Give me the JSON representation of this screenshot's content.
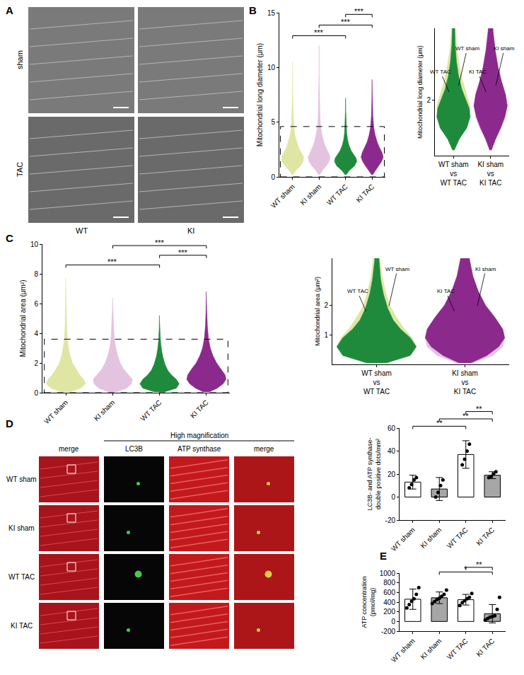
{
  "chart_data": [
    {
      "type": "violin",
      "title": "B",
      "categories": [
        "WT sham",
        "KI sham",
        "WT TAC",
        "KI TAC"
      ],
      "ylabel": [
        "Mitochondrial long diameter (μm)"
      ],
      "ylim": [
        0,
        15
      ],
      "yticks": [
        0,
        5,
        10,
        15
      ],
      "series": [
        {
          "name": "WT sham",
          "color": "#dfe6a3",
          "profile": {
            "y": [
              0.2,
              0.6,
              1.0,
              1.4,
              1.8,
              2.2,
              2.7,
              3.2,
              3.8,
              4.5,
              5.5,
              7,
              9,
              10.5
            ],
            "density": [
              0.05,
              0.3,
              0.7,
              0.95,
              1.0,
              0.8,
              0.55,
              0.38,
              0.22,
              0.12,
              0.06,
              0.03,
              0.015,
              0.01
            ]
          }
        },
        {
          "name": "KI sham",
          "color": "#e3c3e0",
          "profile": {
            "y": [
              0.2,
              0.6,
              1.0,
              1.4,
              1.8,
              2.2,
              2.7,
              3.2,
              3.8,
              4.5,
              5.5,
              7,
              9.5,
              12
            ],
            "density": [
              0.05,
              0.3,
              0.65,
              0.9,
              1.0,
              0.85,
              0.6,
              0.42,
              0.27,
              0.15,
              0.08,
              0.04,
              0.015,
              0.01
            ]
          }
        },
        {
          "name": "WT TAC",
          "color": "#1f8a3c",
          "profile": {
            "y": [
              0.2,
              0.6,
              1.0,
              1.4,
              1.7,
              2.0,
              2.4,
              2.9,
              3.4,
              4.0,
              5,
              6,
              7.2
            ],
            "density": [
              0.05,
              0.35,
              0.8,
              1.0,
              0.95,
              0.75,
              0.5,
              0.3,
              0.18,
              0.1,
              0.05,
              0.02,
              0.01
            ]
          }
        },
        {
          "name": "KI TAC",
          "color": "#8b2a8c",
          "profile": {
            "y": [
              0.2,
              0.6,
              1.0,
              1.4,
              1.8,
              2.2,
              2.7,
              3.2,
              3.8,
              4.5,
              5.5,
              7,
              8.9
            ],
            "density": [
              0.05,
              0.3,
              0.6,
              0.85,
              1.0,
              0.9,
              0.65,
              0.45,
              0.28,
              0.15,
              0.07,
              0.03,
              0.01
            ]
          }
        }
      ],
      "comparisons": [
        {
          "groups": [
            "WT sham",
            "WT TAC"
          ],
          "label": "***"
        },
        {
          "groups": [
            "KI sham",
            "KI TAC"
          ],
          "label": "***"
        },
        {
          "groups": [
            "WT TAC",
            "KI TAC"
          ],
          "label": "***"
        }
      ],
      "inset": {
        "categories": [
          [
            "WT sham",
            "vs",
            "WT TAC"
          ],
          [
            "KI sham",
            "vs",
            "KI TAC"
          ]
        ],
        "overlay": [
          [
            "WT sham",
            "WT TAC"
          ],
          [
            "KI sham",
            "KI TAC"
          ]
        ],
        "ylabel": [
          "Mitochondrial long diameter (μm)"
        ],
        "ylim": [
          0,
          4.6
        ],
        "yticks": [
          2
        ]
      }
    },
    {
      "type": "violin",
      "title": "C",
      "categories": [
        "WT sham",
        "KI sham",
        "WT TAC",
        "KI TAC"
      ],
      "ylabel": [
        "Mitochondrial area (μm²)"
      ],
      "ylim": [
        0,
        10
      ],
      "yticks": [
        0,
        2,
        4,
        6,
        8,
        10
      ],
      "series": [
        {
          "name": "WT sham",
          "color": "#dfe6a3",
          "profile": {
            "y": [
              0.05,
              0.3,
              0.6,
              0.9,
              1.2,
              1.6,
              2.0,
              2.5,
              3.0,
              3.6,
              4.5,
              6.0,
              7.7
            ],
            "density": [
              0.2,
              0.75,
              1.0,
              0.9,
              0.7,
              0.5,
              0.33,
              0.22,
              0.14,
              0.08,
              0.04,
              0.02,
              0.01
            ]
          }
        },
        {
          "name": "KI sham",
          "color": "#e3c3e0",
          "profile": {
            "y": [
              0.05,
              0.3,
              0.6,
              0.9,
              1.2,
              1.6,
              2.0,
              2.5,
              3.0,
              3.6,
              4.5,
              5.5,
              6.4
            ],
            "density": [
              0.2,
              0.7,
              0.95,
              1.0,
              0.8,
              0.55,
              0.38,
              0.25,
              0.16,
              0.09,
              0.05,
              0.02,
              0.01
            ]
          }
        },
        {
          "name": "WT TAC",
          "color": "#1f8a3c",
          "profile": {
            "y": [
              0.05,
              0.3,
              0.6,
              0.9,
              1.2,
              1.5,
              1.9,
              2.4,
              2.9,
              3.5,
              4.3,
              5.2
            ],
            "density": [
              0.25,
              0.85,
              1.0,
              0.85,
              0.6,
              0.42,
              0.28,
              0.17,
              0.1,
              0.05,
              0.02,
              0.01
            ]
          }
        },
        {
          "name": "KI TAC",
          "color": "#8b2a8c",
          "profile": {
            "y": [
              0.05,
              0.3,
              0.6,
              0.9,
              1.2,
              1.6,
              2.0,
              2.5,
              3.0,
              3.6,
              4.5,
              5.6,
              6.8
            ],
            "density": [
              0.15,
              0.55,
              0.85,
              1.0,
              0.95,
              0.75,
              0.52,
              0.33,
              0.2,
              0.11,
              0.05,
              0.02,
              0.01
            ]
          }
        }
      ],
      "comparisons": [
        {
          "groups": [
            "WT sham",
            "WT TAC"
          ],
          "label": "***"
        },
        {
          "groups": [
            "WT TAC",
            "KI TAC"
          ],
          "label": "***"
        },
        {
          "groups": [
            "KI sham",
            "KI TAC"
          ],
          "label": "***"
        }
      ],
      "inset": {
        "categories": [
          [
            "WT sham",
            "vs",
            "WT TAC"
          ],
          [
            "KI sham",
            "vs",
            "KI TAC"
          ]
        ],
        "overlay": [
          [
            "WT sham",
            "WT TAC"
          ],
          [
            "KI sham",
            "KI TAC"
          ]
        ],
        "ylabel": [
          "Mitochondrial area (μm²)"
        ],
        "ylim": [
          0,
          3.6
        ],
        "yticks": [
          1,
          2
        ]
      }
    },
    {
      "type": "bar",
      "categories": [
        "WT sham",
        "KI sham",
        "WT TAC",
        "KI TAC"
      ],
      "ylabel": [
        "LC3B- and ATP synthase-",
        "double positive dots/mm²"
      ],
      "ylim": [
        -20,
        60
      ],
      "yticks": [
        -20,
        0,
        20,
        40,
        60
      ],
      "values": [
        13,
        7,
        37,
        19
      ],
      "errors": [
        6,
        10,
        12,
        3
      ],
      "points": [
        [
          8,
          11,
          15,
          17
        ],
        [
          0,
          4,
          10,
          15
        ],
        [
          28,
          33,
          40,
          46
        ],
        [
          17,
          18,
          20,
          22
        ]
      ],
      "colors": [
        "#ffffff",
        "#a6a6a6",
        "#ffffff",
        "#a6a6a6"
      ],
      "comparisons": [
        {
          "groups": [
            "WT sham",
            "WT TAC"
          ],
          "label": "**"
        },
        {
          "groups": [
            "KI sham",
            "KI TAC"
          ],
          "label": "**"
        },
        {
          "groups": [
            "WT TAC",
            "KI TAC"
          ],
          "label": "**"
        }
      ]
    },
    {
      "type": "bar",
      "title": "E",
      "categories": [
        "WT sham",
        "KI sham",
        "WT TAC",
        "KI TAC"
      ],
      "ylabel": [
        "ATP concentration",
        "(pmol/mg)"
      ],
      "ylim": [
        -200,
        1000
      ],
      "yticks": [
        -200,
        0,
        200,
        400,
        600,
        800,
        1000
      ],
      "values": [
        460,
        490,
        450,
        160
      ],
      "errors": [
        210,
        120,
        110,
        190
      ],
      "points": [
        [
          280,
          350,
          420,
          470,
          560,
          700
        ],
        [
          370,
          410,
          450,
          480,
          520,
          560,
          650
        ],
        [
          330,
          390,
          430,
          470,
          500,
          580
        ],
        [
          30,
          60,
          90,
          100,
          120,
          250,
          500
        ]
      ],
      "colors": [
        "#ffffff",
        "#a6a6a6",
        "#ffffff",
        "#a6a6a6"
      ],
      "comparisons": [
        {
          "groups": [
            "KI sham",
            "KI TAC"
          ],
          "label": "*"
        },
        {
          "groups": [
            "WT TAC",
            "KI TAC"
          ],
          "label": "**"
        }
      ]
    }
  ],
  "image_panels": [
    {
      "title": "A",
      "rows": [
        "sham",
        "TAC"
      ],
      "columns": [
        "WT",
        "KI"
      ]
    },
    {
      "title": "D",
      "header": "High magnification",
      "rows": [
        "WT sham",
        "KI sham",
        "WT TAC",
        "KI TAC"
      ],
      "columns": [
        "merge",
        "LC3B",
        "ATP synthase",
        "merge"
      ]
    }
  ]
}
